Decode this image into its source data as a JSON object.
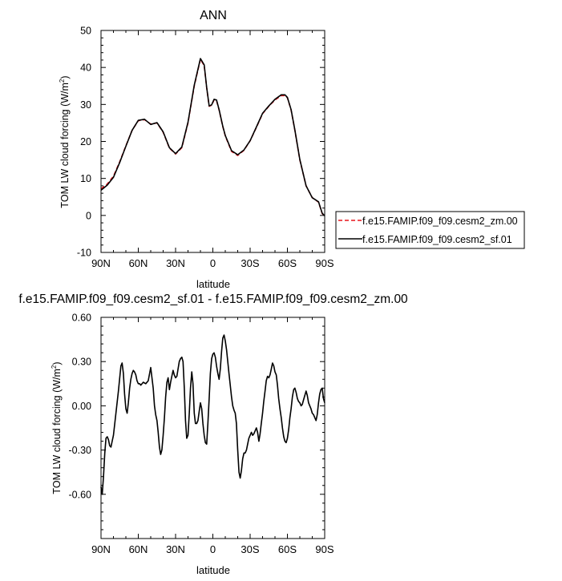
{
  "chart_data": [
    {
      "type": "line",
      "title": "ANN",
      "xlabel": "latitude",
      "ylabel": "TOM LW cloud forcing (W/m²)",
      "ylabel_main": "TOM LW cloud forcing (W/m",
      "ylabel_sup": "2",
      "ylabel_end": ")",
      "xlim": [
        90,
        -90
      ],
      "ylim": [
        -10,
        50
      ],
      "x_ticks": [
        90,
        60,
        30,
        0,
        -30,
        -60,
        -90
      ],
      "x_tick_labels": [
        "90N",
        "60N",
        "30N",
        "0",
        "30S",
        "60S",
        "90S"
      ],
      "y_ticks": [
        -10,
        0,
        10,
        20,
        30,
        40,
        50
      ],
      "y_tick_labels": [
        "-10",
        "0",
        "10",
        "20",
        "30",
        "40",
        "50"
      ],
      "grid": false,
      "legend_position": "right",
      "series": [
        {
          "name": "f.e15.FAMIP.f09_f09.cesm2_zm.00",
          "color": "#e8141c",
          "dash": "dashed",
          "x": [
            90,
            85,
            80,
            75,
            70,
            65,
            60,
            55,
            50,
            45,
            40,
            35,
            30,
            25,
            20,
            15,
            10,
            7,
            5,
            3,
            1,
            -1,
            -3,
            -5,
            -8,
            -10,
            -15,
            -20,
            -25,
            -30,
            -35,
            -40,
            -45,
            -50,
            -55,
            -58,
            -60,
            -63,
            -66,
            -70,
            -75,
            -80,
            -85,
            -88,
            -90
          ],
          "y": [
            7.2,
            8.5,
            10.6,
            14.5,
            18.8,
            23.0,
            25.6,
            25.9,
            24.7,
            25.0,
            22.5,
            18.2,
            16.6,
            18.3,
            25.0,
            35.0,
            42.2,
            40.5,
            34.5,
            29.5,
            29.8,
            31.2,
            31.0,
            28.5,
            24.0,
            21.5,
            17.3,
            16.2,
            17.6,
            20.2,
            23.8,
            27.5,
            29.5,
            31.2,
            32.4,
            32.4,
            31.8,
            28.5,
            23.0,
            15.0,
            8.0,
            4.8,
            3.6,
            0.5,
            -0.2
          ]
        },
        {
          "name": "f.e15.FAMIP.f09_f09.cesm2_sf.01",
          "color": "#000000",
          "dash": "solid",
          "x": [
            90,
            85,
            80,
            75,
            70,
            65,
            60,
            55,
            50,
            45,
            40,
            35,
            30,
            25,
            20,
            15,
            10,
            7,
            5,
            3,
            1,
            -1,
            -3,
            -5,
            -8,
            -10,
            -15,
            -20,
            -25,
            -30,
            -35,
            -40,
            -45,
            -50,
            -55,
            -58,
            -60,
            -63,
            -66,
            -70,
            -75,
            -80,
            -85,
            -88,
            -90
          ],
          "y": [
            6.8,
            8.2,
            10.3,
            14.3,
            18.7,
            23.0,
            25.7,
            26.0,
            24.6,
            25.1,
            22.6,
            18.3,
            16.7,
            18.5,
            25.2,
            35.2,
            42.4,
            40.7,
            34.6,
            29.6,
            29.9,
            31.4,
            31.2,
            28.6,
            24.1,
            21.6,
            17.5,
            16.4,
            17.7,
            20.2,
            23.9,
            27.6,
            29.6,
            31.4,
            32.6,
            32.6,
            31.9,
            28.6,
            23.1,
            15.1,
            8.0,
            4.8,
            3.7,
            0.6,
            -0.1
          ]
        }
      ]
    },
    {
      "type": "line",
      "title": "f.e15.FAMIP.f09_f09.cesm2_sf.01 - f.e15.FAMIP.f09_f09.cesm2_zm.00",
      "xlabel": "latitude",
      "ylabel": "TOM LW cloud forcing (W/m²)",
      "ylabel_main": "TOM LW cloud forcing (W/m",
      "ylabel_sup": "2",
      "ylabel_end": ")",
      "xlim": [
        90,
        -90
      ],
      "ylim": [
        -0.9,
        0.6
      ],
      "x_ticks": [
        90,
        60,
        30,
        0,
        -30,
        -60,
        -90
      ],
      "x_tick_labels": [
        "90N",
        "60N",
        "30N",
        "0",
        "30S",
        "60S",
        "90S"
      ],
      "y_ticks": [
        -0.6,
        -0.3,
        0.0,
        0.3,
        0.6
      ],
      "y_tick_labels": [
        "-0.60",
        "-0.30",
        "0.00",
        "0.30",
        "0.60"
      ],
      "grid": false,
      "series": [
        {
          "color": "#000000",
          "dash": "solid",
          "x": [
            90,
            89,
            88,
            87,
            86,
            85,
            84,
            83,
            82,
            81,
            80,
            78,
            76,
            74,
            73,
            72,
            71,
            70,
            69,
            68,
            67,
            66,
            65,
            64,
            63,
            62,
            61,
            60,
            59,
            58,
            56,
            54,
            52,
            50,
            48,
            47,
            46,
            45,
            44,
            43,
            42,
            41,
            40,
            39,
            38,
            37,
            36,
            35,
            34,
            33,
            32,
            31,
            30,
            29,
            28,
            27,
            26,
            25,
            24,
            23,
            22,
            21,
            20,
            19,
            18,
            17,
            16,
            15,
            14,
            13,
            12,
            11,
            10,
            9,
            8,
            7,
            6,
            5,
            4,
            3,
            2,
            1,
            0,
            -1,
            -2,
            -3,
            -4,
            -5,
            -6,
            -7,
            -8,
            -9,
            -10,
            -11,
            -12,
            -13,
            -14,
            -15,
            -16,
            -17,
            -18,
            -19,
            -20,
            -21,
            -22,
            -23,
            -24,
            -25,
            -26,
            -27,
            -28,
            -29,
            -30,
            -31,
            -32,
            -33,
            -34,
            -35,
            -36,
            -37,
            -38,
            -39,
            -40,
            -41,
            -42,
            -43,
            -44,
            -45,
            -46,
            -47,
            -48,
            -49,
            -50,
            -51,
            -52,
            -53,
            -54,
            -55,
            -56,
            -57,
            -58,
            -59,
            -60,
            -61,
            -62,
            -63,
            -64,
            -65,
            -66,
            -67,
            -68,
            -69,
            -70,
            -71,
            -72,
            -73,
            -74,
            -75,
            -76,
            -77,
            -78,
            -79,
            -80,
            -81,
            -82,
            -83,
            -84,
            -85,
            -86,
            -87,
            -88,
            -89,
            -90
          ],
          "y": [
            -0.55,
            -0.6,
            -0.48,
            -0.32,
            -0.22,
            -0.21,
            -0.23,
            -0.27,
            -0.28,
            -0.24,
            -0.2,
            -0.05,
            0.1,
            0.27,
            0.29,
            0.22,
            0.08,
            -0.02,
            -0.05,
            0.02,
            0.12,
            0.18,
            0.22,
            0.24,
            0.23,
            0.21,
            0.17,
            0.15,
            0.15,
            0.14,
            0.16,
            0.15,
            0.17,
            0.26,
            0.12,
            0.0,
            -0.06,
            -0.1,
            -0.18,
            -0.28,
            -0.33,
            -0.3,
            -0.2,
            -0.08,
            0.06,
            0.16,
            0.19,
            0.11,
            0.16,
            0.2,
            0.24,
            0.21,
            0.19,
            0.2,
            0.25,
            0.3,
            0.32,
            0.33,
            0.3,
            0.12,
            -0.1,
            -0.22,
            -0.2,
            -0.05,
            0.12,
            0.23,
            0.15,
            -0.05,
            -0.12,
            -0.12,
            -0.1,
            -0.04,
            0.02,
            -0.02,
            -0.12,
            -0.2,
            -0.25,
            -0.26,
            -0.12,
            0.05,
            0.22,
            0.32,
            0.35,
            0.36,
            0.33,
            0.27,
            0.22,
            0.18,
            0.25,
            0.37,
            0.46,
            0.48,
            0.44,
            0.38,
            0.3,
            0.22,
            0.14,
            0.06,
            0.0,
            -0.03,
            -0.05,
            -0.12,
            -0.3,
            -0.45,
            -0.49,
            -0.44,
            -0.36,
            -0.32,
            -0.32,
            -0.3,
            -0.26,
            -0.22,
            -0.2,
            -0.18,
            -0.2,
            -0.19,
            -0.17,
            -0.15,
            -0.18,
            -0.24,
            -0.19,
            -0.12,
            -0.05,
            0.03,
            0.1,
            0.17,
            0.2,
            0.19,
            0.21,
            0.25,
            0.29,
            0.27,
            0.23,
            0.21,
            0.14,
            0.05,
            -0.02,
            -0.08,
            -0.15,
            -0.21,
            -0.24,
            -0.25,
            -0.22,
            -0.16,
            -0.08,
            -0.02,
            0.06,
            0.11,
            0.12,
            0.09,
            0.05,
            0.03,
            0.02,
            0.0,
            0.01,
            0.04,
            0.07,
            0.1,
            0.07,
            0.02,
            0.0,
            -0.02,
            -0.05,
            -0.06,
            -0.08,
            -0.1,
            -0.06,
            0.02,
            0.08,
            0.11,
            0.12,
            0.05,
            0.02
          ]
        }
      ]
    }
  ]
}
